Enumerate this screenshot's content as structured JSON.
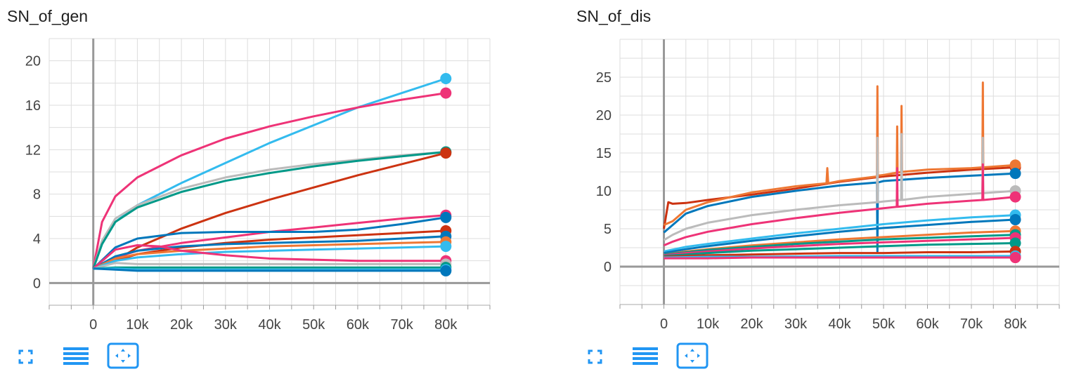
{
  "toolbar": {
    "icons": [
      "expand-icon",
      "data-selection-icon",
      "fit-domain-icon"
    ],
    "accent": "#2196f3"
  },
  "chart_data": [
    {
      "type": "line",
      "title": "SN_of_gen",
      "xlabel": "",
      "ylabel": "",
      "xlim": [
        -10000,
        90000
      ],
      "ylim": [
        -2,
        22
      ],
      "xticks": [
        0,
        10000,
        20000,
        30000,
        40000,
        50000,
        60000,
        70000,
        80000
      ],
      "xtick_labels": [
        "0",
        "10k",
        "20k",
        "30k",
        "40k",
        "50k",
        "60k",
        "70k",
        "80k"
      ],
      "yticks": [
        0,
        4,
        8,
        12,
        16,
        20
      ],
      "ytick_labels": [
        "0",
        "4",
        "8",
        "12",
        "16",
        "20"
      ],
      "grid": true,
      "legend": "none",
      "series": [
        {
          "color": "#33bbee",
          "x": [
            0,
            2000,
            5000,
            10000,
            20000,
            30000,
            40000,
            50000,
            60000,
            70000,
            80000
          ],
          "values": [
            1.3,
            3.5,
            5.5,
            7.0,
            9.0,
            10.8,
            12.6,
            14.2,
            15.8,
            17.1,
            18.4
          ]
        },
        {
          "color": "#ee3377",
          "x": [
            0,
            2000,
            5000,
            10000,
            20000,
            30000,
            40000,
            50000,
            60000,
            70000,
            80000
          ],
          "values": [
            1.3,
            5.5,
            7.8,
            9.5,
            11.5,
            13.0,
            14.1,
            15.0,
            15.8,
            16.5,
            17.1
          ]
        },
        {
          "color": "#bbbbbb",
          "x": [
            0,
            2000,
            5000,
            10000,
            20000,
            30000,
            40000,
            50000,
            60000,
            70000,
            80000
          ],
          "values": [
            1.3,
            3.8,
            5.8,
            7.0,
            8.5,
            9.5,
            10.2,
            10.7,
            11.1,
            11.5,
            11.8
          ]
        },
        {
          "color": "#009988",
          "x": [
            0,
            2000,
            5000,
            10000,
            20000,
            30000,
            40000,
            50000,
            60000,
            70000,
            80000
          ],
          "values": [
            1.3,
            3.5,
            5.5,
            6.8,
            8.2,
            9.2,
            9.9,
            10.5,
            11.0,
            11.4,
            11.8
          ]
        },
        {
          "color": "#cc3311",
          "x": [
            0,
            5000,
            10000,
            20000,
            30000,
            40000,
            50000,
            60000,
            70000,
            80000
          ],
          "values": [
            1.3,
            2.0,
            3.2,
            4.9,
            6.3,
            7.5,
            8.6,
            9.7,
            10.7,
            11.7
          ]
        },
        {
          "color": "#ee3377",
          "x": [
            0,
            5000,
            10000,
            20000,
            30000,
            40000,
            50000,
            60000,
            70000,
            80000
          ],
          "values": [
            1.3,
            2.3,
            2.9,
            3.6,
            4.1,
            4.6,
            5.0,
            5.4,
            5.8,
            6.1
          ]
        },
        {
          "color": "#0077bb",
          "x": [
            0,
            5000,
            10000,
            20000,
            30000,
            40000,
            50000,
            60000,
            70000,
            80000
          ],
          "values": [
            1.3,
            3.2,
            4.0,
            4.5,
            4.6,
            4.6,
            4.6,
            4.8,
            5.3,
            5.9
          ]
        },
        {
          "color": "#cc3311",
          "x": [
            0,
            5000,
            10000,
            20000,
            30000,
            40000,
            50000,
            60000,
            70000,
            80000
          ],
          "values": [
            1.3,
            2.0,
            2.6,
            3.2,
            3.6,
            3.9,
            4.1,
            4.3,
            4.5,
            4.7
          ]
        },
        {
          "color": "#0077bb",
          "x": [
            0,
            5000,
            10000,
            20000,
            30000,
            40000,
            50000,
            60000,
            70000,
            80000
          ],
          "values": [
            1.3,
            2.4,
            2.9,
            3.3,
            3.5,
            3.6,
            3.7,
            3.8,
            4.0,
            4.2
          ]
        },
        {
          "color": "#ee7733",
          "x": [
            0,
            5000,
            10000,
            20000,
            30000,
            40000,
            50000,
            60000,
            70000,
            80000
          ],
          "values": [
            1.3,
            2.2,
            2.6,
            2.9,
            3.1,
            3.3,
            3.4,
            3.5,
            3.6,
            3.7
          ]
        },
        {
          "color": "#33bbee",
          "x": [
            0,
            5000,
            10000,
            20000,
            30000,
            40000,
            50000,
            60000,
            70000,
            80000
          ],
          "values": [
            1.3,
            2.0,
            2.3,
            2.6,
            2.8,
            2.9,
            3.0,
            3.1,
            3.2,
            3.3
          ]
        },
        {
          "color": "#ee3377",
          "x": [
            0,
            5000,
            10000,
            15000,
            20000,
            30000,
            40000,
            50000,
            60000,
            70000,
            80000
          ],
          "values": [
            1.3,
            3.0,
            3.4,
            3.3,
            2.9,
            2.5,
            2.2,
            2.1,
            2.0,
            2.0,
            2.0
          ]
        },
        {
          "color": "#bbbbbb",
          "x": [
            0,
            5000,
            10000,
            20000,
            40000,
            60000,
            80000
          ],
          "values": [
            1.3,
            1.8,
            1.7,
            1.7,
            1.7,
            1.7,
            1.7
          ]
        },
        {
          "color": "#009988",
          "x": [
            0,
            5000,
            10000,
            20000,
            40000,
            60000,
            80000
          ],
          "values": [
            1.3,
            1.4,
            1.4,
            1.4,
            1.4,
            1.4,
            1.4
          ]
        },
        {
          "color": "#33bbee",
          "x": [
            0,
            5000,
            10000,
            20000,
            40000,
            60000,
            80000
          ],
          "values": [
            1.3,
            1.3,
            1.2,
            1.2,
            1.2,
            1.2,
            1.2
          ]
        },
        {
          "color": "#0077bb",
          "x": [
            0,
            5000,
            10000,
            20000,
            40000,
            60000,
            80000
          ],
          "values": [
            1.3,
            1.2,
            1.1,
            1.1,
            1.1,
            1.1,
            1.1
          ]
        }
      ]
    },
    {
      "type": "line",
      "title": "SN_of_dis",
      "xlabel": "",
      "ylabel": "",
      "xlim": [
        -10000,
        90000
      ],
      "ylim": [
        -5,
        30
      ],
      "xticks": [
        0,
        10000,
        20000,
        30000,
        40000,
        50000,
        60000,
        70000,
        80000
      ],
      "xtick_labels": [
        "0",
        "10k",
        "20k",
        "30k",
        "40k",
        "50k",
        "60k",
        "70k",
        "80k"
      ],
      "yticks": [
        0,
        5,
        10,
        15,
        20,
        25
      ],
      "ytick_labels": [
        "0",
        "5",
        "10",
        "15",
        "20",
        "25"
      ],
      "grid": true,
      "legend": "none",
      "series": [
        {
          "color": "#cc3311",
          "x": [
            0,
            1000,
            2000,
            5000,
            10000,
            20000,
            30000,
            40000,
            50000,
            60000,
            70000,
            80000
          ],
          "values": [
            5.0,
            8.5,
            8.3,
            8.4,
            8.8,
            9.5,
            10.3,
            11.2,
            11.9,
            12.4,
            12.8,
            13.1
          ]
        },
        {
          "color": "#ee7733",
          "x": [
            0,
            2000,
            5000,
            10000,
            20000,
            30000,
            37000,
            37200,
            37400,
            40000,
            48500,
            48600,
            48700,
            50000,
            53000,
            53100,
            53200,
            54000,
            54100,
            54200,
            60000,
            70000,
            72500,
            72600,
            72700,
            80000
          ],
          "values": [
            5.5,
            6.0,
            7.5,
            8.5,
            9.8,
            10.6,
            11.0,
            13.0,
            11.0,
            11.3,
            11.9,
            23.8,
            12.0,
            12.1,
            12.4,
            18.5,
            12.4,
            12.5,
            21.2,
            12.5,
            12.8,
            13.0,
            13.1,
            24.3,
            13.1,
            13.4
          ]
        },
        {
          "color": "#0077bb",
          "x": [
            0,
            2000,
            5000,
            10000,
            20000,
            30000,
            40000,
            48500,
            48600,
            48700,
            50000,
            60000,
            70000,
            80000
          ],
          "values": [
            4.5,
            5.5,
            7.0,
            8.0,
            9.2,
            10.0,
            10.7,
            11.1,
            2.0,
            11.1,
            11.3,
            11.7,
            12.0,
            12.3
          ]
        },
        {
          "color": "#bbbbbb",
          "x": [
            0,
            2000,
            5000,
            10000,
            20000,
            30000,
            40000,
            48500,
            48600,
            48700,
            50000,
            54000,
            54100,
            54200,
            60000,
            70000,
            72500,
            72600,
            72700,
            80000
          ],
          "values": [
            3.5,
            4.2,
            5.0,
            5.8,
            6.8,
            7.5,
            8.1,
            8.5,
            17.0,
            8.5,
            8.6,
            8.8,
            17.5,
            8.8,
            9.2,
            9.6,
            9.7,
            17.0,
            9.7,
            10.0
          ]
        },
        {
          "color": "#ee3377",
          "x": [
            0,
            2000,
            5000,
            10000,
            20000,
            30000,
            40000,
            50000,
            53000,
            53100,
            53200,
            60000,
            70000,
            72500,
            72600,
            72700,
            80000
          ],
          "values": [
            2.8,
            3.3,
            3.9,
            4.6,
            5.6,
            6.4,
            7.1,
            7.7,
            7.9,
            13.0,
            7.9,
            8.3,
            8.7,
            8.8,
            13.5,
            8.8,
            9.2
          ]
        },
        {
          "color": "#33bbee",
          "x": [
            0,
            5000,
            10000,
            20000,
            30000,
            40000,
            50000,
            60000,
            70000,
            80000
          ],
          "values": [
            2.0,
            2.6,
            3.0,
            3.7,
            4.4,
            5.0,
            5.6,
            6.1,
            6.5,
            6.8
          ]
        },
        {
          "color": "#0077bb",
          "x": [
            0,
            5000,
            10000,
            20000,
            30000,
            40000,
            50000,
            60000,
            70000,
            80000
          ],
          "values": [
            1.8,
            2.3,
            2.7,
            3.4,
            4.0,
            4.6,
            5.1,
            5.5,
            5.9,
            6.2
          ]
        },
        {
          "color": "#ee7733",
          "x": [
            0,
            5000,
            10000,
            20000,
            30000,
            40000,
            50000,
            60000,
            70000,
            80000
          ],
          "values": [
            1.6,
            2.0,
            2.3,
            2.8,
            3.2,
            3.6,
            3.9,
            4.2,
            4.5,
            4.7
          ]
        },
        {
          "color": "#009988",
          "x": [
            0,
            5000,
            10000,
            20000,
            30000,
            40000,
            50000,
            60000,
            70000,
            80000
          ],
          "values": [
            1.6,
            1.9,
            2.2,
            2.6,
            3.0,
            3.3,
            3.6,
            3.8,
            4.0,
            4.2
          ]
        },
        {
          "color": "#ee3377",
          "x": [
            0,
            5000,
            10000,
            20000,
            30000,
            40000,
            50000,
            60000,
            70000,
            80000
          ],
          "values": [
            1.5,
            1.8,
            2.0,
            2.4,
            2.7,
            3.0,
            3.2,
            3.4,
            3.6,
            3.8
          ]
        },
        {
          "color": "#009988",
          "x": [
            0,
            5000,
            10000,
            20000,
            30000,
            40000,
            50000,
            60000,
            70000,
            80000
          ],
          "values": [
            1.4,
            1.6,
            1.8,
            2.1,
            2.3,
            2.5,
            2.7,
            2.9,
            3.0,
            3.1
          ]
        },
        {
          "color": "#cc3311",
          "x": [
            0,
            5000,
            10000,
            20000,
            30000,
            40000,
            50000,
            60000,
            70000,
            80000
          ],
          "values": [
            1.3,
            1.4,
            1.5,
            1.6,
            1.7,
            1.8,
            1.8,
            1.9,
            1.9,
            2.0
          ]
        },
        {
          "color": "#33bbee",
          "x": [
            0,
            10000,
            20000,
            40000,
            60000,
            80000
          ],
          "values": [
            1.2,
            1.3,
            1.3,
            1.4,
            1.4,
            1.4
          ]
        },
        {
          "color": "#ee3377",
          "x": [
            0,
            10000,
            20000,
            40000,
            60000,
            80000
          ],
          "values": [
            1.1,
            1.1,
            1.2,
            1.2,
            1.2,
            1.2
          ]
        }
      ]
    }
  ]
}
